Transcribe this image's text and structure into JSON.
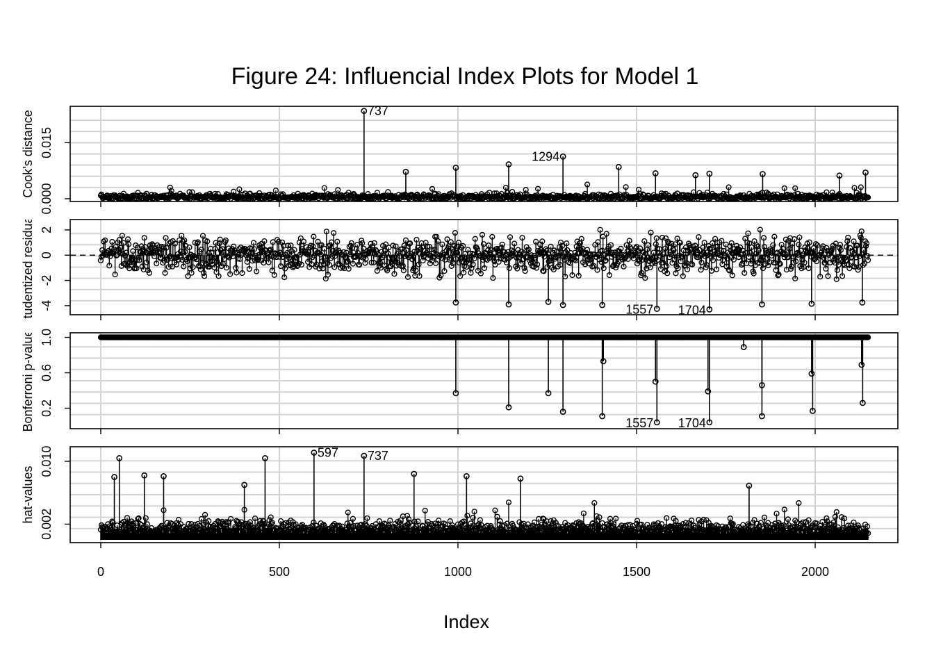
{
  "chart_data": {
    "type": "scatter",
    "title": "Figure 24: Influencial Index Plots for Model 1",
    "xlabel": "Index",
    "xlim": [
      0,
      2150
    ],
    "xticks": [
      0,
      500,
      1000,
      1500,
      2000
    ],
    "xtick_labels": [
      "0",
      "500",
      "1000",
      "1500",
      "2000"
    ],
    "n_observations": 2150,
    "grid": true,
    "panels": [
      {
        "key": "cook",
        "ylabel": "Cook's distance",
        "ylim": [
          0,
          0.024
        ],
        "yticks": [
          0.0,
          0.015
        ],
        "ytick_labels": [
          "0.000",
          "0.015"
        ],
        "baseline": 0,
        "reference_line": null,
        "highlighted": [
          {
            "x": 737,
            "y": 0.0235,
            "label": "737"
          },
          {
            "x": 1294,
            "y": 0.0113,
            "label": "1294"
          },
          {
            "x": 1142,
            "y": 0.0092
          },
          {
            "x": 994,
            "y": 0.0083
          },
          {
            "x": 1450,
            "y": 0.0085
          },
          {
            "x": 854,
            "y": 0.0072
          },
          {
            "x": 1553,
            "y": 0.0068
          },
          {
            "x": 1704,
            "y": 0.0067
          },
          {
            "x": 2141,
            "y": 0.007
          },
          {
            "x": 1853,
            "y": 0.0066
          },
          {
            "x": 2068,
            "y": 0.0062
          },
          {
            "x": 1665,
            "y": 0.0063
          }
        ]
      },
      {
        "key": "rstudent",
        "ylabel": "Studentized residuals",
        "ylim": [
          -4.5,
          2.6
        ],
        "yticks": [
          -4,
          -2,
          0,
          2
        ],
        "ytick_labels": [
          "-4",
          "-2",
          "0",
          "2"
        ],
        "baseline": 0,
        "reference_line": 0,
        "highlighted": [
          {
            "x": 1557,
            "y": -4.25,
            "label": "1557"
          },
          {
            "x": 1704,
            "y": -4.3,
            "label": "1704"
          },
          {
            "x": 994,
            "y": -3.75
          },
          {
            "x": 1142,
            "y": -3.9
          },
          {
            "x": 1294,
            "y": -3.95
          },
          {
            "x": 1253,
            "y": -3.7
          },
          {
            "x": 1404,
            "y": -3.95
          },
          {
            "x": 1851,
            "y": -3.9
          },
          {
            "x": 1990,
            "y": -3.85
          },
          {
            "x": 2132,
            "y": -3.75
          }
        ]
      },
      {
        "key": "bonferroni",
        "ylabel": "Bonferroni p-value",
        "ylim": [
          0,
          1.02
        ],
        "yticks": [
          0.2,
          0.6,
          1.0
        ],
        "ytick_labels": [
          "0.2",
          "0.6",
          "1.0"
        ],
        "baseline": 1,
        "reference_line": null,
        "highlighted": [
          {
            "x": 1557,
            "y": 0.04,
            "label": "1557"
          },
          {
            "x": 1704,
            "y": 0.04,
            "label": "1704"
          },
          {
            "x": 994,
            "y": 0.37
          },
          {
            "x": 1142,
            "y": 0.21
          },
          {
            "x": 1253,
            "y": 0.37
          },
          {
            "x": 1294,
            "y": 0.16
          },
          {
            "x": 1404,
            "y": 0.11
          },
          {
            "x": 1407,
            "y": 0.73
          },
          {
            "x": 1553,
            "y": 0.5
          },
          {
            "x": 1700,
            "y": 0.39
          },
          {
            "x": 1800,
            "y": 0.89
          },
          {
            "x": 1851,
            "y": 0.46
          },
          {
            "x": 1851,
            "y": 0.11
          },
          {
            "x": 1990,
            "y": 0.59
          },
          {
            "x": 1993,
            "y": 0.17
          },
          {
            "x": 2130,
            "y": 0.69
          },
          {
            "x": 2133,
            "y": 0.26
          }
        ]
      },
      {
        "key": "hat",
        "ylabel": "hat-values",
        "ylim": [
          0,
          0.0115
        ],
        "yticks": [
          0.002,
          0.01
        ],
        "ytick_labels": [
          "0.002",
          "0.010"
        ],
        "baseline": 0,
        "reference_line": null,
        "highlighted": [
          {
            "x": 597,
            "y": 0.0111,
            "label": "597"
          },
          {
            "x": 737,
            "y": 0.0107,
            "label": "737"
          },
          {
            "x": 52,
            "y": 0.0104
          },
          {
            "x": 460,
            "y": 0.0104
          },
          {
            "x": 38,
            "y": 0.008
          },
          {
            "x": 122,
            "y": 0.0082
          },
          {
            "x": 176,
            "y": 0.0081
          },
          {
            "x": 877,
            "y": 0.0084
          },
          {
            "x": 1024,
            "y": 0.0081
          },
          {
            "x": 1175,
            "y": 0.0078
          },
          {
            "x": 1815,
            "y": 0.0069
          },
          {
            "x": 402,
            "y": 0.007
          }
        ]
      }
    ]
  }
}
